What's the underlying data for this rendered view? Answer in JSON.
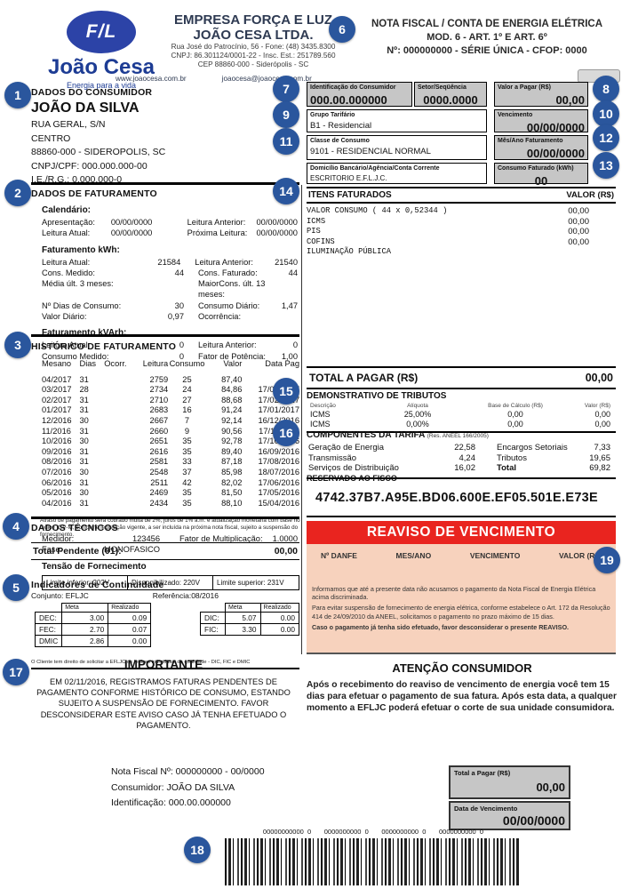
{
  "colors": {
    "brand_navy": "#1d3c94",
    "callout_blue": "#2a569d",
    "banner_red": "#e9241f",
    "salmon": "#f7d2bd",
    "box_gray": "#c6c6c6"
  },
  "callouts": [
    "1",
    "2",
    "3",
    "4",
    "5",
    "6",
    "7",
    "8",
    "9",
    "10",
    "11",
    "12",
    "13",
    "14",
    "15",
    "16",
    "17",
    "18",
    "19"
  ],
  "header": {
    "logo_monogram": "F/L",
    "logo_name": "João Cesa",
    "logo_tagline": "Energia para a vida",
    "company_line1": "EMPRESA FORÇA E LUZ",
    "company_line2": "JOÃO CESA LTDA.",
    "address_line1": "Rua José do Patrocínio, 56 - Fone: (48) 3435.8300",
    "address_line2": "CNPJ: 86.301124/0001-22 - Insc. Est.: 251789.560",
    "address_line3": "CEP 88860-000 - Siderópolis - SC",
    "website": "www.joaocesa.com.br",
    "email": "joaocesa@joaocesa.com.br",
    "doc_title": "NOTA FISCAL / CONTA DE ENERGIA ELÉTRICA",
    "doc_subtitle": "MOD. 6 - ART. 1º E ART. 6º",
    "doc_number_line": "Nº: 000000000   -   SÉRIE ÚNICA   -   CFOP: 0000"
  },
  "consumer": {
    "section_title": "DADOS DO CONSUMIDOR",
    "name": "JOÃO DA SILVA",
    "address": "RUA GERAL, S/N",
    "district": "CENTRO",
    "city": "88860-000 - SIDEROPOLIS, SC",
    "cnpj_cpf": "CNPJ/CPF: 000.000.000-00",
    "ie_rg": "I.E./R.G.: 0.000.000-0"
  },
  "id_grid": {
    "identificacao_label": "Identificação do Consumidor",
    "identificacao_value": "000.00.000000",
    "setor_label": "Setor/Seqüência",
    "setor_value": "0000.0000",
    "valor_label": "Valor a Pagar (R$)",
    "valor_value": "00,00",
    "grupo_label": "Grupo Tarifário",
    "grupo_value": "B1 - Residencial",
    "venc_label": "Vencimento",
    "venc_value": "00/00/0000",
    "classe_label": "Classe de Consumo",
    "classe_value": "9101 - RESIDENCIAL NORMAL",
    "mesano_label": "Mês/Ano Faturamento",
    "mesano_value": "00/00/0000",
    "domicilio_label": "Domicílio Bancário/Agência/Conta Corrente",
    "domicilio_value": "ESCRITORIO E.F.L.J.C.",
    "consumo_label": "Consumo Faturado (kWh)",
    "consumo_value": "00"
  },
  "billing": {
    "section_title": "DADOS DE FATURAMENTO",
    "calendar_title": "Calendário:",
    "calendar": [
      [
        "Apresentação:",
        "00/00/0000",
        "Leitura Anterior:",
        "00/00/0000"
      ],
      [
        "Leitura Atual:",
        "00/00/0000",
        "Próxima Leitura:",
        "00/00/0000"
      ]
    ],
    "kwh_title": "Faturamento kWh:",
    "kwh": [
      [
        "Leitura Atual:",
        "21584",
        "Leitura Anterior:",
        "21540"
      ],
      [
        "Cons. Medido:",
        "44",
        "Cons. Faturado:",
        "44"
      ],
      [
        "Média últ. 3 meses:",
        "",
        "MaiorCons. últ. 13 meses:",
        ""
      ],
      [
        "Nº Dias de Consumo:",
        "30",
        "Consumo Diário:",
        "1,47"
      ],
      [
        "Valor Diário:",
        "0,97",
        "Ocorrência:",
        ""
      ]
    ],
    "kvarh_title": "Faturamento kVArh:",
    "kvarh": [
      [
        "Leitura Atual:",
        "0",
        "Leitura Anterior:",
        "0"
      ],
      [
        "Consumo Medido:",
        "0",
        "Fator de Potência:",
        "1,00"
      ]
    ]
  },
  "history": {
    "section_title": "HISTÓRICO DE FATURAMENTO",
    "columns": [
      "Mesano",
      "Dias",
      "Ocorr.",
      "Leitura",
      "Consumo",
      "Valor",
      "Data Pag"
    ],
    "rows": [
      [
        "04/2017",
        "31",
        "",
        "2759",
        "25",
        "87,40",
        ""
      ],
      [
        "03/2017",
        "28",
        "",
        "2734",
        "24",
        "84,86",
        "17/03/2017"
      ],
      [
        "02/2017",
        "31",
        "",
        "2710",
        "27",
        "88,68",
        "17/02/2017"
      ],
      [
        "01/2017",
        "31",
        "",
        "2683",
        "16",
        "91,24",
        "17/01/2017"
      ],
      [
        "12/2016",
        "30",
        "",
        "2667",
        "7",
        "92,14",
        "16/12/2016"
      ],
      [
        "11/2016",
        "31",
        "",
        "2660",
        "9",
        "90,56",
        "17/11/2016"
      ],
      [
        "10/2016",
        "30",
        "",
        "2651",
        "35",
        "92,78",
        "17/10/2016"
      ],
      [
        "09/2016",
        "31",
        "",
        "2616",
        "35",
        "89,40",
        "16/09/2016"
      ],
      [
        "08/2016",
        "31",
        "",
        "2581",
        "33",
        "87,18",
        "17/08/2016"
      ],
      [
        "07/2016",
        "30",
        "",
        "2548",
        "37",
        "85,98",
        "18/07/2016"
      ],
      [
        "06/2016",
        "31",
        "",
        "2511",
        "42",
        "82,02",
        "17/06/2016"
      ],
      [
        "05/2016",
        "30",
        "",
        "2469",
        "35",
        "81,50",
        "17/05/2016"
      ],
      [
        "04/2016",
        "31",
        "",
        "2434",
        "35",
        "88,10",
        "15/04/2016"
      ]
    ],
    "late_notice": "Atraso de pagamento será cobrado multa de 2%, juros de 1% a.m. e atualização monetária com base no índice IGP-M, conforme legislação vigente, a ser incluída na próxima nota fiscal, sujeito a suspensão do fornecimento.",
    "pending_label": "Total Pendente (01):",
    "pending_value": "00,00"
  },
  "technical": {
    "section_title": "DADOS TÉCNICOS",
    "rows": [
      [
        "Medidor:",
        "123456",
        "Fator de Multiplicação:",
        "1.0000"
      ],
      [
        "Fase:",
        "MONOFASICO",
        "",
        ""
      ]
    ],
    "tensao_title": "Tensão de Fornecimento",
    "tensao_cells": [
      "Limite inferior: 202V",
      "Disponibilizado: 220V",
      "Limite superior: 231V"
    ]
  },
  "continuity": {
    "section_title": "Indicadores de Continuidade",
    "conjunto": "Conjunto: EFLJC",
    "referencia": "Referência:08/2016",
    "meta_header": "Meta",
    "realizado_header": "Realizado",
    "left_rows": [
      [
        "DEC:",
        "3.00",
        "0.09"
      ],
      [
        "FEC:",
        "2.70",
        "0.07"
      ],
      [
        "DMIC",
        "2.86",
        "0.00"
      ]
    ],
    "right_rows": [
      [
        "DIC:",
        "5.07",
        "0.00"
      ],
      [
        "FIC:",
        "3.30",
        "0.00"
      ]
    ],
    "footnote": "O Cliente tem direito de solicitar a EFLJC os índices individuais de qualidade - DIC, FIC e DMIC"
  },
  "items": {
    "section_title": "ITENS FATURADOS",
    "valor_header": "VALOR (R$)",
    "rows": [
      [
        "VALOR CONSUMO ( 44 x 0,52344 )",
        "00,00"
      ],
      [
        "ICMS",
        "00,00"
      ],
      [
        "PIS",
        "00,00"
      ],
      [
        "COFINS",
        "00,00"
      ],
      [
        "ILUMINAÇÃO PÚBLICA",
        ""
      ]
    ],
    "total_label": "TOTAL A PAGAR (R$)",
    "total_value": "00,00"
  },
  "taxes": {
    "section_title": "DEMONSTRATIVO DE TRIBUTOS",
    "columns": [
      "Descrição",
      "Alíquota",
      "Base de Cálculo (R$)",
      "Valor (R$)"
    ],
    "rows": [
      [
        "ICMS",
        "25,00%",
        "0,00",
        "0,00"
      ],
      [
        "ICMS",
        "0,00%",
        "0,00",
        "0,00"
      ]
    ]
  },
  "tariff": {
    "section_title": "COMPONENTES DA TARIFA",
    "section_note": "(Res. ANEEL 166/2005)",
    "rows": [
      [
        "Geração de Energia",
        "22,58",
        "Encargos Setoriais",
        "7,33"
      ],
      [
        "Transmissão",
        "4,24",
        "Tributos",
        "19,65"
      ],
      [
        "Serviços de Distribuição",
        "16,02",
        "Total",
        "69,82"
      ]
    ]
  },
  "fisco": {
    "label": "RESERVADO AO FISCO",
    "code": "4742.37B7.A95E.BD06.600E.EF05.501E.E73E"
  },
  "reaviso": {
    "banner": "REAVISO DE VENCIMENTO",
    "columns": [
      "Nº DANFE",
      "MES/ANO",
      "VENCIMENTO",
      "VALOR (R$)"
    ],
    "p1": "Informamos que até a presente data não acusamos o pagamento da Nota Fiscal de Energia Elétrica acima discriminada.",
    "p2": "Para evitar suspensão de fornecimento de energia elétrica, conforme estabelece o Art. 172 da Resolução 414 de 24/09/2010 da ANEEL, solicitamos o pagamento no prazo máximo de 15 dias.",
    "p3": "Caso o pagamento já tenha sido efetuado, favor desconsiderar o presente REAVISO."
  },
  "importante": {
    "title": "IMPORTANTE",
    "body": "EM 02/11/2016, REGISTRAMOS FATURAS PENDENTES DE PAGAMENTO CONFORME HISTÓRICO DE CONSUMO, ESTANDO SUJEITO A SUSPENSÃO DE FORNECIMENTO. FAVOR DESCONSIDERAR ESTE AVISO CASO JÁ TENHA EFETUADO O PAGAMENTO."
  },
  "atencao": {
    "title": "ATENÇÃO CONSUMIDOR",
    "body": "Após o recebimento do reaviso de vencimento de energia você tem 15 dias para efetuar o pagamento de sua fatura. Após esta data, a qualquer momento a EFLJC poderá efetuar o corte de sua unidade  consumidora."
  },
  "footer": {
    "nota_line": "Nota Fiscal Nº: 000000000 - 00/0000",
    "consumidor_line": "Consumidor: JOÃO DA SILVA",
    "id_line": "Identificação: 000.00.000000",
    "total_label": "Total a Pagar (R$)",
    "total_value": "00,00",
    "venc_label": "Data de Vencimento",
    "venc_value": "00/00/0000",
    "barcode_digits": "00000000000  0       0000000000  0       0000000000  0       0000000000  0"
  }
}
